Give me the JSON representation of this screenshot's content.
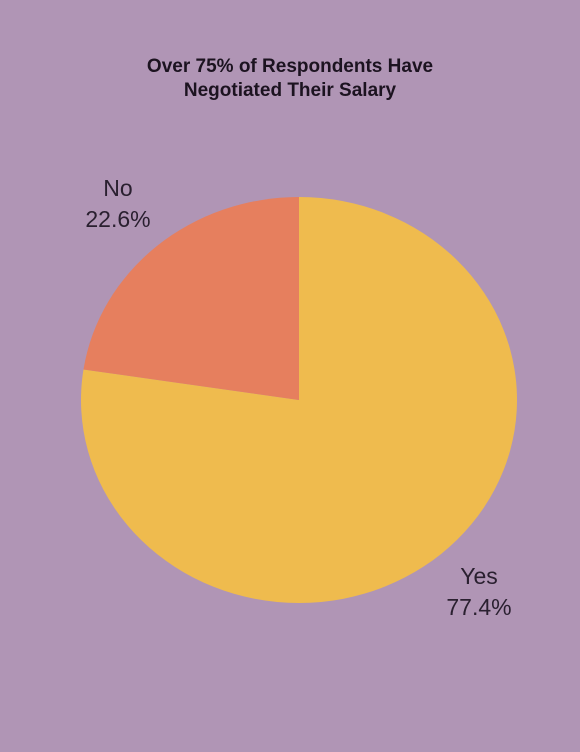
{
  "chart_data": {
    "type": "pie",
    "title": "Over 75% of Respondents Have Negotiated Their Salary",
    "categories": [
      "Yes",
      "No"
    ],
    "values": [
      77.4,
      22.6
    ],
    "value_labels": [
      "77.4%",
      "22.6%"
    ],
    "colors": [
      "#efbb4e",
      "#e67f5e"
    ],
    "start_angle": 0,
    "direction": "clockwise"
  }
}
